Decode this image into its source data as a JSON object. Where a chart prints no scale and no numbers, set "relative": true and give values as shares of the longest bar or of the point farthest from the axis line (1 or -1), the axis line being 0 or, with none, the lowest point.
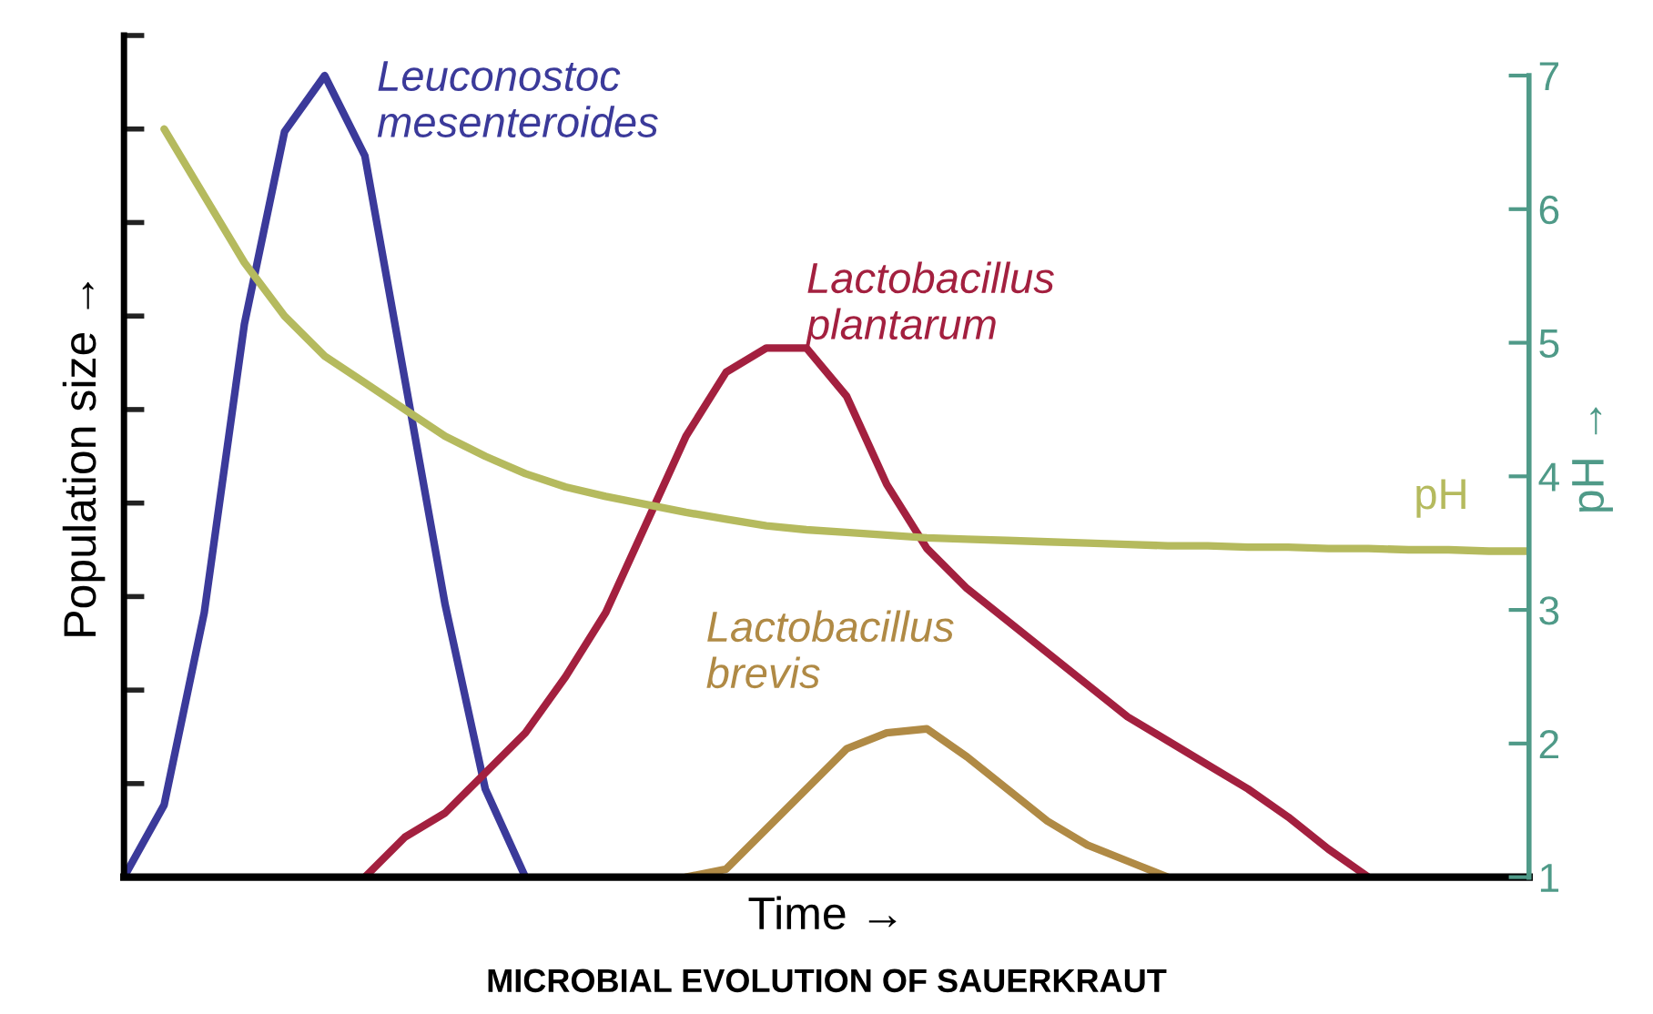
{
  "chart_data": [
    {
      "type": "line",
      "relative": true,
      "annotations": [
        "MICROBIAL EVOLUTION OF SAUERKRAUT"
      ],
      "xlabel": "Time →",
      "ylabel": "Population size →",
      "categories": [
        null,
        null,
        null,
        null,
        null,
        null,
        null,
        null,
        null,
        null,
        null,
        null,
        null,
        null,
        null,
        null,
        null,
        null,
        null,
        null,
        null,
        null,
        null,
        null,
        null,
        null,
        null,
        null,
        null,
        null,
        null,
        null,
        null,
        null,
        null,
        null
      ],
      "series": [
        {
          "name": "Leuconostoc\nmesenteroides",
          "color": "#3b3a9a",
          "values": [
            0,
            0.09,
            0.33,
            0.69,
            0.93,
            1.0,
            0.9,
            0.62,
            0.34,
            0.11,
            0,
            null,
            null,
            null,
            null,
            null,
            null,
            null,
            null,
            null,
            null,
            null,
            null,
            null,
            null,
            null,
            null,
            null,
            null,
            null,
            null,
            null,
            null,
            null,
            null,
            null
          ]
        },
        {
          "name": "Lactobacillus\nplantarum",
          "color": "#a3203f",
          "values": [
            null,
            null,
            null,
            null,
            null,
            null,
            0,
            0.05,
            0.08,
            0.13,
            0.18,
            0.25,
            0.33,
            0.44,
            0.55,
            0.63,
            0.66,
            0.66,
            0.6,
            0.49,
            0.41,
            0.36,
            0.32,
            0.28,
            0.24,
            0.2,
            0.17,
            0.14,
            0.11,
            0.075,
            0.035,
            0,
            null,
            null,
            null,
            null
          ]
        },
        {
          "name": "Lactobacillus\nbrevis",
          "color": "#b08a45",
          "values": [
            null,
            null,
            null,
            null,
            null,
            null,
            null,
            null,
            null,
            null,
            null,
            null,
            null,
            null,
            0,
            0.01,
            0.06,
            0.11,
            0.16,
            0.18,
            0.185,
            0.15,
            0.11,
            0.07,
            0.04,
            0.02,
            0,
            null,
            null,
            null,
            null,
            null,
            null,
            null,
            null,
            null
          ]
        }
      ]
    },
    {
      "type": "line",
      "ylabel": "pH →",
      "categories": [
        null,
        null,
        null,
        null,
        null,
        null,
        null,
        null,
        null,
        null,
        null,
        null,
        null,
        null,
        null,
        null,
        null,
        null,
        null,
        null,
        null,
        null,
        null,
        null,
        null,
        null,
        null,
        null,
        null,
        null,
        null,
        null,
        null,
        null,
        null,
        null
      ],
      "series": [
        {
          "name": "pH",
          "color": "#b5ba5e",
          "values": [
            null,
            6.6,
            6.1,
            5.6,
            5.2,
            4.9,
            4.7,
            4.5,
            4.3,
            4.15,
            4.02,
            3.92,
            3.85,
            3.79,
            3.73,
            3.68,
            3.63,
            3.6,
            3.58,
            3.56,
            3.54,
            3.53,
            3.52,
            3.51,
            3.5,
            3.49,
            3.48,
            3.48,
            3.47,
            3.47,
            3.46,
            3.46,
            3.45,
            3.45,
            3.44,
            3.44
          ]
        }
      ],
      "ylim": [
        1,
        7.3
      ],
      "yticks": [
        1,
        2,
        3,
        4,
        5,
        6,
        7
      ]
    }
  ]
}
